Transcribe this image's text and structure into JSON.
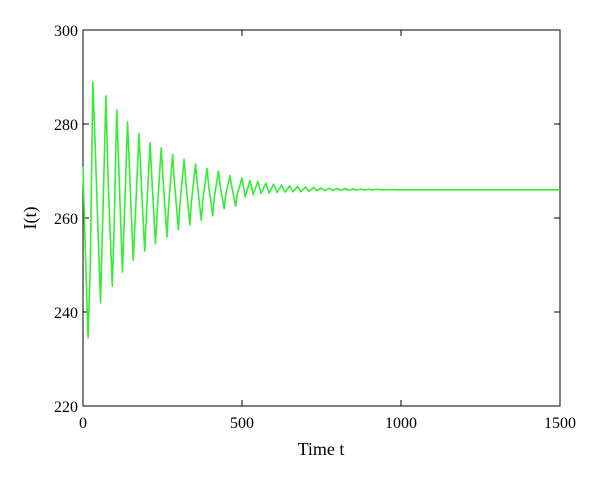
{
  "chart_data": {
    "type": "line",
    "xlabel": "Time t",
    "ylabel": "I(t)",
    "xlim": [
      0,
      1500
    ],
    "ylim": [
      220,
      300
    ],
    "xticks": [
      0,
      500,
      1000,
      1500
    ],
    "yticks": [
      220,
      240,
      260,
      280,
      300
    ],
    "grid": false,
    "line_color": "#33ee33",
    "series": [
      {
        "x": [
          0,
          5,
          16,
          23,
          31,
          38,
          55,
          63,
          72,
          79,
          92,
          98,
          106,
          113,
          124,
          130,
          140,
          147,
          158,
          165,
          176,
          183,
          194,
          200,
          211,
          217,
          228,
          234,
          246,
          252,
          264,
          269,
          282,
          287,
          300,
          305,
          318,
          323,
          336,
          341,
          354,
          359,
          372,
          377,
          390,
          395,
          408,
          413,
          426,
          431,
          444,
          449,
          462,
          467,
          480,
          485,
          500,
          510,
          525,
          535,
          550,
          560,
          575,
          585,
          600,
          610,
          625,
          635,
          650,
          660,
          675,
          685,
          700,
          710,
          725,
          735,
          750,
          760,
          775,
          785,
          800,
          810,
          825,
          835,
          850,
          860,
          875,
          885,
          900,
          910,
          925,
          935,
          950,
          960,
          975,
          985,
          1000,
          1010,
          1025,
          1035,
          1050,
          1060,
          1075,
          1085,
          1100,
          1110,
          1125,
          1135,
          1150,
          1200,
          1300,
          1400,
          1500
        ],
        "y": [
          271,
          258,
          234.5,
          250,
          289,
          276,
          242,
          262,
          286,
          268,
          245.5,
          258,
          283,
          270,
          248.5,
          260,
          280.5,
          269,
          251,
          261,
          278,
          268,
          253,
          261.5,
          276,
          268,
          254.5,
          262,
          275,
          268,
          256,
          262.5,
          273.5,
          268,
          257.5,
          263,
          272.5,
          268,
          258.5,
          263.5,
          271.5,
          267.5,
          259.5,
          264,
          270.5,
          267,
          260.5,
          264.5,
          270,
          267,
          262,
          265,
          269,
          267,
          262.5,
          265,
          268.5,
          264.5,
          268,
          265,
          267.8,
          265.2,
          267.4,
          265.3,
          267.2,
          265.4,
          267,
          265.5,
          266.8,
          265.6,
          266.7,
          265.6,
          266.6,
          265.7,
          266.5,
          265.8,
          266.4,
          265.8,
          266.35,
          265.85,
          266.3,
          265.9,
          266.25,
          265.9,
          266.2,
          265.95,
          266.15,
          265.95,
          266.1,
          266,
          266.1,
          266,
          266.05,
          266,
          266.05,
          266,
          266,
          266,
          266,
          266,
          266,
          266,
          266,
          266,
          266,
          266,
          266,
          266,
          266,
          266,
          266,
          266,
          266
        ]
      }
    ]
  }
}
